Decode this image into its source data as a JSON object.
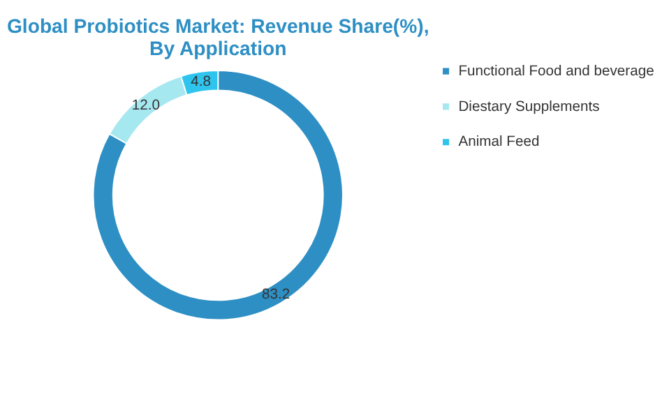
{
  "chart_data": {
    "type": "donut",
    "title": "Global Probiotics Market: Revenue Share(%),  By Application",
    "categories": [
      "Functional Food and beverage",
      "Diestary Supplements",
      "Animal Feed"
    ],
    "values": [
      83.2,
      12.0,
      4.8
    ],
    "colors": [
      "#2e8fc4",
      "#a6e8f0",
      "#2ec4ee"
    ],
    "value_labels": [
      "83.2",
      "12.0",
      "4.8"
    ],
    "legend": "right"
  }
}
